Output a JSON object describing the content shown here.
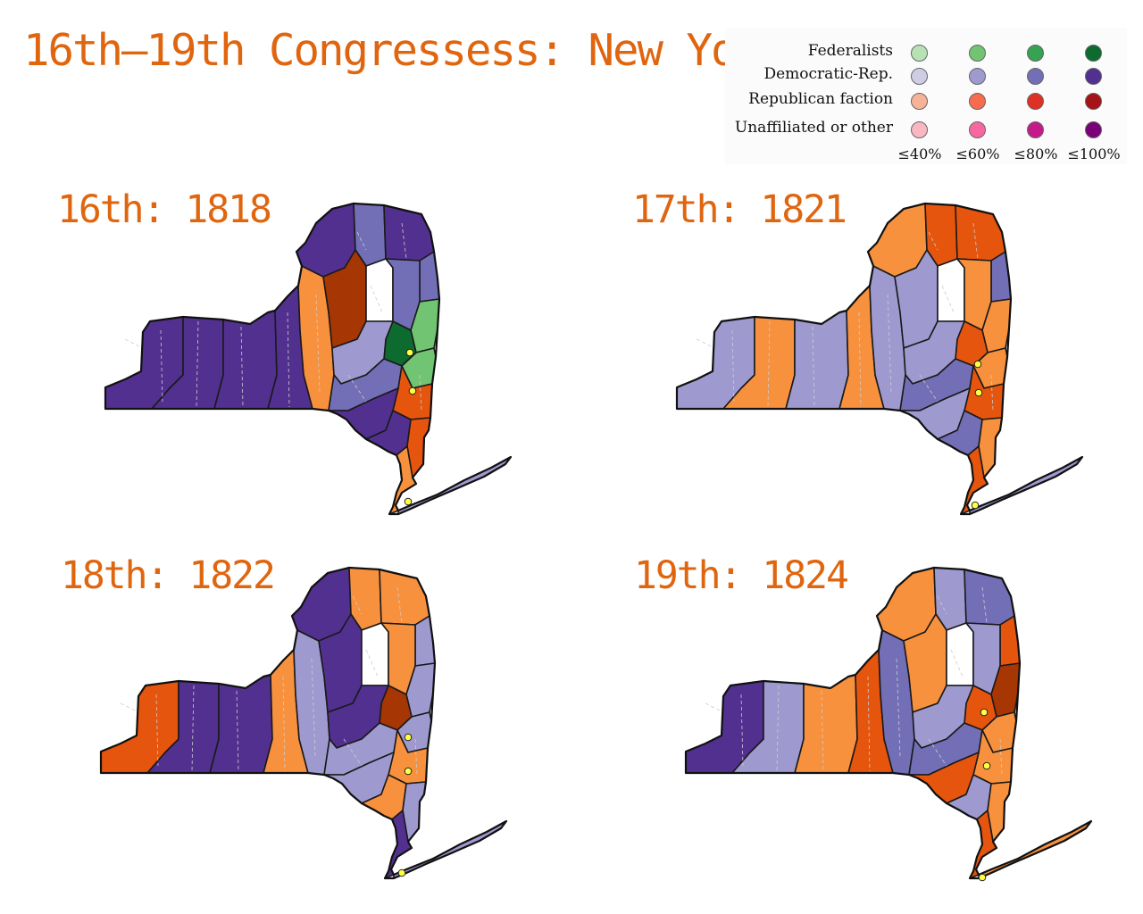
{
  "title": "16th–19th Congressess: New York",
  "legend": {
    "rows": [
      {
        "label": "Federalists",
        "colors": [
          "#b7e3b4",
          "#71c471",
          "#35a352",
          "#0d6b30"
        ]
      },
      {
        "label": "Democratic-Rep.",
        "colors": [
          "#cfcce6",
          "#9e9ad0",
          "#736fb7",
          "#52308f"
        ]
      },
      {
        "label": "Republican faction",
        "colors": [
          "#f7b397",
          "#f86b4d",
          "#df3025",
          "#a51217"
        ]
      },
      {
        "label": "Unaffiliated or other",
        "colors": [
          "#f9b7c2",
          "#f768a1",
          "#c51b8a",
          "#7a0177"
        ]
      }
    ],
    "percent_labels": [
      "≤40%",
      "≤60%",
      "≤80%",
      "≤100%"
    ]
  },
  "panels": [
    {
      "id": "p16",
      "label": "16th: 1818",
      "congress": "16th",
      "year": "1818"
    },
    {
      "id": "p17",
      "label": "17th: 1821",
      "congress": "17th",
      "year": "1821"
    },
    {
      "id": "p18",
      "label": "18th: 1822",
      "congress": "18th",
      "year": "1822"
    },
    {
      "id": "p19",
      "label": "19th: 1824",
      "congress": "19th",
      "year": "1824"
    }
  ],
  "colors": {
    "title": "#e0650f",
    "dem_dark": "#52308f",
    "dem_mid": "#736fb7",
    "dem_light": "#9e9ad0",
    "rep_orange": "#f8913d",
    "rep_dark_orange": "#e6550d",
    "rep_brown": "#a63603",
    "fed_dark": "#0d6b30",
    "fed_light": "#71c471",
    "no_data": "#ffffff",
    "city_marker": "#ffff44"
  }
}
